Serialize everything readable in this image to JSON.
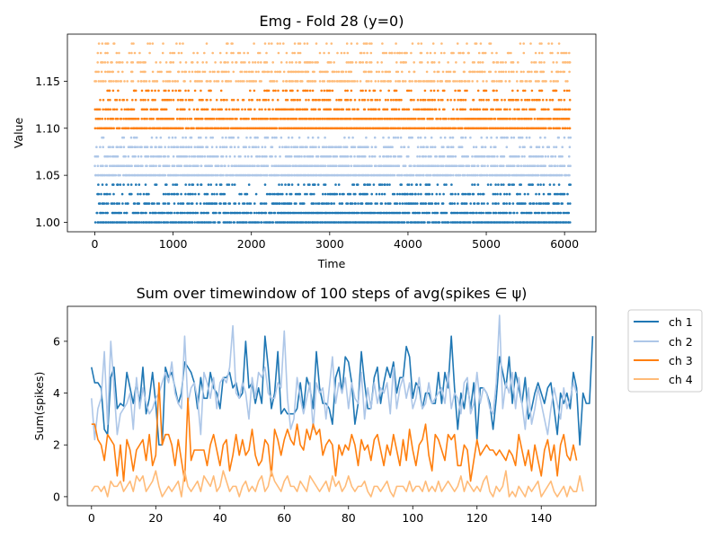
{
  "chart_data": [
    {
      "type": "scatter",
      "title": "Emg - Fold 28 (y=0)",
      "xlabel": "Time",
      "ylabel": "Value",
      "xlim": [
        -350,
        6400
      ],
      "ylim": [
        0.99,
        1.2
      ],
      "xticks": [
        0,
        1000,
        2000,
        3000,
        4000,
        5000,
        6000
      ],
      "xtick_labels": [
        "0",
        "1000",
        "2000",
        "3000",
        "4000",
        "5000",
        "6000"
      ],
      "yticks": [
        1.0,
        1.05,
        1.1,
        1.15
      ],
      "ytick_labels": [
        "1.00",
        "1.05",
        "1.10",
        "1.15"
      ],
      "grid": false,
      "series": [
        {
          "color": "#1f77b4",
          "values": [
            1.0,
            1.01,
            1.02,
            1.03,
            1.04
          ],
          "x_range": [
            0,
            6080
          ]
        },
        {
          "color": "#aec7e8",
          "values": [
            1.05,
            1.06,
            1.07,
            1.08,
            1.09
          ],
          "x_range": [
            0,
            6080
          ]
        },
        {
          "color": "#ff7f0e",
          "values": [
            1.1,
            1.11,
            1.12,
            1.13,
            1.14
          ],
          "x_range": [
            0,
            6080
          ]
        },
        {
          "color": "#ffbb78",
          "values": [
            1.15,
            1.16,
            1.17,
            1.18,
            1.19
          ],
          "x_range": [
            0,
            6080
          ]
        }
      ]
    },
    {
      "type": "line",
      "title": "Sum over timewindow of 100 steps of avg(spikes ∈ ψ)",
      "xlabel": "",
      "ylabel": "Sum(spikes)",
      "xlim": [
        -7.5,
        157
      ],
      "ylim": [
        -0.35,
        7.35
      ],
      "xticks": [
        0,
        20,
        40,
        60,
        80,
        100,
        120,
        140
      ],
      "xtick_labels": [
        "0",
        "20",
        "40",
        "60",
        "80",
        "100",
        "120",
        "140"
      ],
      "yticks": [
        0,
        2,
        4,
        6
      ],
      "ytick_labels": [
        "0",
        "2",
        "4",
        "6"
      ],
      "legend": "outside-right",
      "grid": false,
      "series": [
        {
          "name": "ch 1",
          "color": "#1f77b4",
          "values": [
            5.0,
            4.4,
            4.4,
            4.2,
            2.6,
            2.4,
            4.6,
            5.0,
            3.4,
            3.6,
            3.5,
            4.8,
            4.2,
            3.6,
            4.4,
            3.6,
            5.0,
            3.2,
            3.8,
            4.8,
            3.6,
            2.0,
            2.0,
            5.0,
            4.6,
            4.8,
            4.2,
            3.6,
            4.0,
            5.2,
            5.0,
            4.8,
            4.4,
            3.4,
            4.6,
            3.8,
            3.8,
            4.8,
            4.2,
            4.0,
            3.4,
            4.6,
            4.6,
            4.8,
            4.2,
            4.4,
            3.8,
            4.0,
            6.0,
            4.2,
            4.4,
            3.6,
            4.2,
            3.6,
            6.2,
            5.0,
            3.4,
            4.0,
            5.6,
            3.2,
            3.4,
            3.2,
            3.2,
            3.2,
            3.4,
            4.4,
            3.4,
            4.6,
            4.2,
            3.4,
            5.6,
            4.2,
            3.6,
            3.6,
            3.4,
            2.8,
            4.6,
            5.0,
            4.0,
            5.4,
            5.2,
            4.4,
            2.8,
            3.6,
            5.6,
            4.4,
            3.4,
            3.4,
            4.6,
            5.0,
            3.6,
            4.4,
            5.0,
            4.6,
            5.2,
            4.0,
            4.6,
            4.6,
            5.8,
            5.4,
            3.8,
            4.4,
            4.2,
            3.4,
            4.0,
            4.0,
            3.6,
            3.6,
            4.8,
            3.6,
            4.8,
            4.2,
            6.2,
            4.2,
            2.6,
            4.0,
            3.4,
            4.4,
            3.4,
            4.4,
            2.2,
            4.2,
            4.2,
            4.0,
            3.6,
            2.6,
            3.8,
            5.4,
            4.8,
            4.2,
            5.4,
            3.6,
            4.8,
            4.2,
            3.6,
            4.6,
            3.0,
            3.4,
            4.0,
            4.4,
            4.0,
            3.6,
            4.2,
            4.4,
            3.4,
            2.4,
            4.0,
            3.6,
            4.0,
            3.4,
            4.8,
            4.2,
            2.0,
            4.0,
            3.6,
            3.6,
            6.2
          ]
        },
        {
          "name": "ch 2",
          "color": "#aec7e8",
          "values": [
            3.8,
            2.2,
            3.4,
            3.8,
            5.6,
            2.8,
            6.0,
            4.2,
            2.4,
            3.2,
            3.4,
            3.6,
            4.0,
            2.6,
            4.6,
            3.4,
            4.2,
            3.6,
            3.2,
            3.4,
            3.8,
            4.0,
            4.4,
            4.8,
            4.4,
            5.2,
            4.0,
            3.6,
            3.4,
            6.2,
            3.6,
            4.2,
            4.4,
            3.8,
            2.4,
            4.8,
            4.4,
            3.8,
            4.6,
            3.4,
            4.4,
            4.6,
            4.4,
            5.0,
            6.6,
            4.0,
            3.8,
            4.4,
            4.0,
            3.0,
            4.6,
            3.8,
            4.8,
            4.6,
            5.0,
            4.0,
            3.8,
            3.8,
            4.4,
            4.2,
            6.4,
            3.8,
            2.6,
            3.0,
            4.6,
            3.8,
            3.2,
            3.8,
            4.4,
            2.6,
            4.4,
            4.0,
            4.2,
            3.0,
            4.2,
            5.4,
            3.6,
            4.4,
            4.0,
            4.6,
            3.4,
            4.4,
            3.8,
            3.6,
            4.8,
            3.0,
            4.2,
            3.4,
            4.4,
            3.6,
            4.2,
            4.0,
            4.4,
            3.2,
            5.0,
            3.4,
            4.2,
            4.6,
            3.8,
            4.4,
            3.4,
            3.8,
            4.6,
            3.4,
            3.6,
            4.4,
            3.6,
            3.8,
            4.0,
            4.2,
            3.6,
            4.8,
            3.4,
            4.0,
            3.8,
            3.2,
            4.4,
            4.6,
            3.2,
            3.6,
            4.8,
            3.6,
            4.2,
            4.0,
            3.4,
            3.2,
            4.4,
            7.0,
            3.4,
            4.4,
            4.0,
            4.8,
            3.4,
            4.6,
            3.6,
            2.6,
            4.2,
            2.8,
            3.4,
            4.2,
            3.6,
            3.0,
            2.4,
            3.4,
            4.2,
            3.6,
            3.0,
            4.2,
            3.4,
            3.8,
            4.4,
            4.0
          ]
        },
        {
          "name": "ch 3",
          "color": "#ff7f0e",
          "values": [
            2.8,
            2.8,
            2.2,
            2.0,
            1.4,
            2.4,
            2.2,
            2.0,
            0.8,
            2.0,
            0.6,
            2.2,
            1.8,
            1.0,
            1.8,
            2.0,
            2.2,
            1.4,
            2.4,
            1.2,
            1.6,
            4.4,
            2.0,
            2.4,
            2.4,
            2.0,
            1.2,
            2.2,
            1.4,
            0.6,
            3.8,
            1.4,
            1.8,
            1.8,
            1.8,
            1.8,
            1.2,
            2.0,
            2.4,
            1.8,
            1.2,
            2.0,
            2.2,
            1.0,
            1.6,
            2.4,
            1.6,
            2.2,
            1.6,
            1.8,
            2.6,
            1.6,
            1.2,
            1.4,
            2.2,
            2.0,
            0.8,
            2.6,
            2.2,
            1.6,
            2.2,
            2.6,
            2.2,
            2.0,
            2.8,
            2.0,
            1.8,
            2.6,
            2.2,
            2.8,
            2.4,
            2.6,
            1.6,
            2.0,
            2.2,
            2.0,
            0.8,
            2.0,
            1.6,
            2.0,
            1.8,
            2.4,
            2.0,
            1.2,
            2.2,
            1.8,
            2.0,
            1.4,
            2.2,
            2.4,
            1.8,
            1.2,
            2.0,
            1.6,
            2.4,
            1.8,
            1.2,
            2.2,
            1.4,
            2.6,
            1.8,
            1.2,
            2.0,
            2.2,
            2.8,
            1.6,
            1.0,
            2.4,
            2.2,
            1.8,
            1.4,
            2.4,
            2.2,
            2.4,
            1.2,
            1.2,
            2.0,
            1.8,
            0.6,
            1.4,
            2.2,
            1.6,
            1.8,
            2.0,
            1.8,
            1.8,
            1.6,
            1.8,
            1.6,
            1.4,
            1.8,
            1.6,
            1.2,
            2.4,
            1.8,
            1.2,
            1.8,
            1.0,
            2.0,
            1.4,
            0.8,
            1.8,
            2.2,
            1.4,
            2.0,
            0.8,
            2.0,
            2.4,
            1.6,
            1.4,
            2.0,
            1.4
          ]
        },
        {
          "name": "ch 4",
          "color": "#ffbb78",
          "values": [
            0.2,
            0.4,
            0.4,
            0.2,
            0.4,
            0.0,
            0.6,
            0.4,
            0.4,
            0.6,
            0.2,
            0.4,
            0.6,
            0.2,
            0.8,
            0.6,
            0.8,
            0.2,
            0.4,
            0.6,
            1.0,
            0.4,
            0.0,
            0.2,
            0.4,
            0.2,
            0.4,
            0.6,
            0.0,
            1.0,
            0.4,
            0.2,
            0.4,
            0.6,
            0.2,
            0.8,
            0.6,
            0.4,
            0.8,
            0.2,
            0.4,
            1.0,
            0.6,
            0.2,
            0.4,
            0.4,
            0.0,
            0.4,
            0.6,
            0.2,
            0.4,
            0.2,
            0.6,
            0.8,
            0.2,
            0.4,
            1.0,
            0.6,
            0.4,
            0.2,
            0.6,
            0.8,
            0.4,
            0.4,
            0.2,
            0.6,
            0.4,
            0.2,
            0.8,
            0.6,
            0.4,
            0.2,
            0.4,
            0.6,
            0.2,
            0.8,
            0.4,
            0.6,
            0.2,
            0.4,
            0.8,
            0.4,
            0.2,
            0.4,
            0.4,
            0.6,
            0.2,
            0.0,
            0.4,
            0.4,
            0.2,
            0.4,
            0.6,
            0.2,
            0.0,
            0.4,
            0.4,
            0.4,
            0.2,
            0.6,
            0.2,
            0.4,
            0.4,
            0.2,
            0.6,
            0.2,
            0.4,
            0.2,
            0.6,
            0.2,
            0.4,
            0.6,
            0.4,
            0.2,
            0.4,
            0.8,
            0.2,
            0.6,
            0.4,
            0.2,
            0.4,
            0.2,
            0.6,
            0.8,
            0.2,
            0.0,
            0.4,
            0.2,
            0.4,
            1.0,
            0.0,
            0.2,
            0.0,
            0.4,
            0.2,
            0.0,
            0.4,
            0.2,
            0.4,
            0.6,
            0.0,
            0.2,
            0.4,
            0.6,
            0.2,
            0.0,
            0.2,
            0.4,
            0.0,
            0.4,
            0.2,
            0.2,
            0.8,
            0.2
          ]
        }
      ]
    }
  ]
}
